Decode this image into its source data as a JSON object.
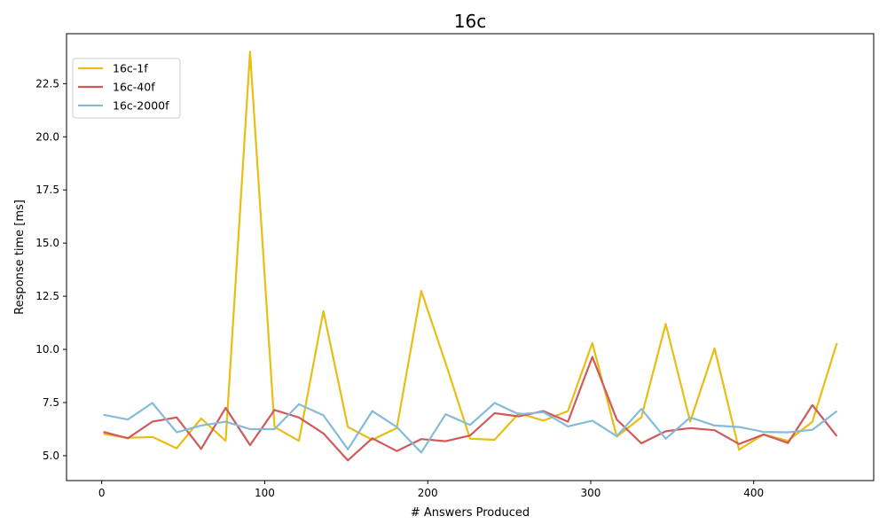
{
  "chart_data": {
    "type": "line",
    "title": "16c",
    "xlabel": "# Answers Produced",
    "ylabel": "Response time [ms]",
    "xlim": [
      -21.6,
      473.6
    ],
    "ylim": [
      3.83,
      24.85
    ],
    "xticks": [
      0,
      100,
      200,
      300,
      400
    ],
    "xtick_labels": [
      "0",
      "100",
      "200",
      "300",
      "400"
    ],
    "yticks": [
      5.0,
      7.5,
      10.0,
      12.5,
      15.0,
      17.5,
      20.0,
      22.5
    ],
    "ytick_labels": [
      "5.0",
      "7.5",
      "10.0",
      "12.5",
      "15.0",
      "17.5",
      "20.0",
      "22.5"
    ],
    "grid": false,
    "legend_position": "top-left",
    "x": [
      1,
      16,
      31,
      46,
      61,
      76,
      91,
      106,
      121,
      136,
      151,
      166,
      181,
      196,
      211,
      226,
      241,
      256,
      271,
      286,
      301,
      316,
      331,
      346,
      361,
      376,
      391,
      406,
      421,
      436,
      451
    ],
    "series": [
      {
        "name": "16c-1f",
        "color": "#e6be14",
        "values": [
          6.03,
          5.84,
          5.88,
          5.35,
          6.75,
          5.7,
          24.0,
          6.35,
          5.7,
          11.8,
          6.35,
          5.75,
          6.3,
          12.75,
          9.35,
          5.8,
          5.75,
          7.0,
          6.65,
          7.1,
          10.3,
          5.9,
          6.8,
          11.2,
          6.6,
          10.05,
          5.28,
          6.0,
          5.7,
          6.6,
          10.3
        ]
      },
      {
        "name": "16c-40f",
        "color": "#d05a5a",
        "values": [
          6.12,
          5.82,
          6.6,
          6.8,
          5.32,
          7.25,
          5.5,
          7.15,
          6.8,
          6.05,
          4.78,
          5.82,
          5.22,
          5.78,
          5.68,
          5.95,
          7.0,
          6.85,
          7.1,
          6.6,
          9.65,
          6.7,
          5.58,
          6.15,
          6.3,
          6.2,
          5.55,
          6.0,
          5.6,
          7.38,
          5.92
        ]
      },
      {
        "name": "16c-2000f",
        "color": "#85bbd9",
        "values": [
          6.93,
          6.7,
          7.48,
          6.1,
          6.42,
          6.6,
          6.25,
          6.25,
          7.42,
          6.9,
          5.3,
          7.1,
          6.35,
          5.15,
          6.95,
          6.45,
          7.48,
          6.95,
          7.05,
          6.38,
          6.65,
          5.92,
          7.2,
          5.8,
          6.8,
          6.42,
          6.35,
          6.12,
          6.1,
          6.22,
          7.1
        ]
      }
    ]
  }
}
